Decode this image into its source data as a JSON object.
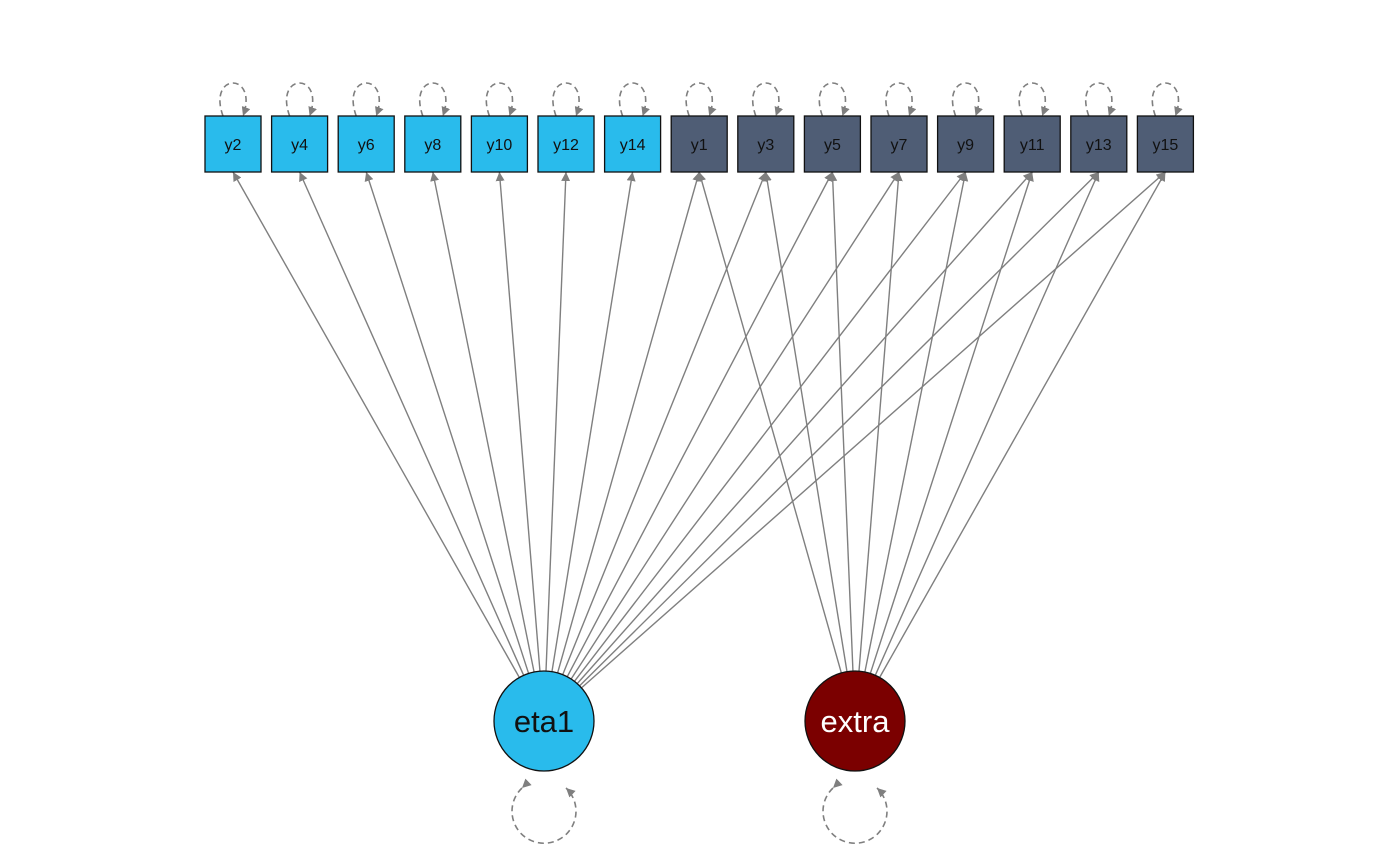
{
  "colors": {
    "indicator_eta1": "#29bbec",
    "indicator_extra": "#4f5d75",
    "latent_eta1": "#29bbec",
    "latent_extra": "#7b0000",
    "path": "#7f7f7f",
    "border": "#111111"
  },
  "manifest": [
    {
      "id": "y2",
      "label": "y2",
      "group": "eta1"
    },
    {
      "id": "y4",
      "label": "y4",
      "group": "eta1"
    },
    {
      "id": "y6",
      "label": "y6",
      "group": "eta1"
    },
    {
      "id": "y8",
      "label": "y8",
      "group": "eta1"
    },
    {
      "id": "y10",
      "label": "y10",
      "group": "eta1"
    },
    {
      "id": "y12",
      "label": "y12",
      "group": "eta1"
    },
    {
      "id": "y14",
      "label": "y14",
      "group": "eta1"
    },
    {
      "id": "y1",
      "label": "y1",
      "group": "extra"
    },
    {
      "id": "y3",
      "label": "y3",
      "group": "extra"
    },
    {
      "id": "y5",
      "label": "y5",
      "group": "extra"
    },
    {
      "id": "y7",
      "label": "y7",
      "group": "extra"
    },
    {
      "id": "y9",
      "label": "y9",
      "group": "extra"
    },
    {
      "id": "y11",
      "label": "y11",
      "group": "extra"
    },
    {
      "id": "y13",
      "label": "y13",
      "group": "extra"
    },
    {
      "id": "y15",
      "label": "y15",
      "group": "extra"
    }
  ],
  "latent": [
    {
      "id": "eta1",
      "label": "eta1",
      "text_color": "#111111"
    },
    {
      "id": "extra",
      "label": "extra",
      "text_color": "#ffffff"
    }
  ],
  "paths": [
    {
      "from": "eta1",
      "to": "y2"
    },
    {
      "from": "eta1",
      "to": "y4"
    },
    {
      "from": "eta1",
      "to": "y6"
    },
    {
      "from": "eta1",
      "to": "y8"
    },
    {
      "from": "eta1",
      "to": "y10"
    },
    {
      "from": "eta1",
      "to": "y12"
    },
    {
      "from": "eta1",
      "to": "y14"
    },
    {
      "from": "eta1",
      "to": "y1"
    },
    {
      "from": "eta1",
      "to": "y3"
    },
    {
      "from": "eta1",
      "to": "y5"
    },
    {
      "from": "eta1",
      "to": "y7"
    },
    {
      "from": "eta1",
      "to": "y9"
    },
    {
      "from": "eta1",
      "to": "y11"
    },
    {
      "from": "eta1",
      "to": "y13"
    },
    {
      "from": "eta1",
      "to": "y15"
    },
    {
      "from": "extra",
      "to": "y1"
    },
    {
      "from": "extra",
      "to": "y3"
    },
    {
      "from": "extra",
      "to": "y5"
    },
    {
      "from": "extra",
      "to": "y7"
    },
    {
      "from": "extra",
      "to": "y9"
    },
    {
      "from": "extra",
      "to": "y11"
    },
    {
      "from": "extra",
      "to": "y13"
    },
    {
      "from": "extra",
      "to": "y15"
    }
  ]
}
